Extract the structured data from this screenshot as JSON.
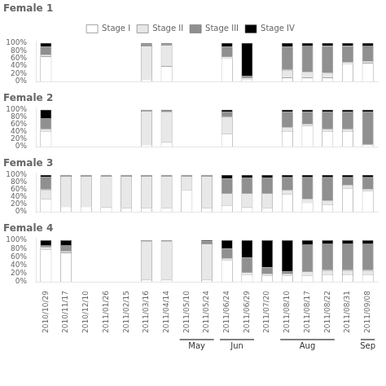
{
  "chart_data": [
    {
      "type": "bar",
      "title": "Female 1",
      "stacked": true,
      "grid": false,
      "legend": "top",
      "tick_labels": "y",
      "categories": [
        "2010/10/29",
        "2010/11/17",
        "2010/12/10",
        "2011/01/26",
        "2011/02/15",
        "2011/03/16",
        "2011/04/14",
        "2011/05/10",
        "2011/05/24",
        "2011/06/24",
        "2011/06/29",
        "2011/07/20",
        "2011/08/10",
        "2011/08/17",
        "2011/08/22",
        "2011/08/31",
        "2011/09/08"
      ],
      "ylim": [
        0,
        105
      ],
      "yticks": [
        {
          "value": 0,
          "label": "0%"
        },
        {
          "value": 20,
          "label": "20%"
        },
        {
          "value": 40,
          "label": "40%"
        },
        {
          "value": 60,
          "label": "60%"
        },
        {
          "value": 80,
          "label": "80%"
        },
        {
          "value": 100,
          "label": "100%"
        }
      ],
      "series": [
        {
          "name": "Stage I",
          "color": "#ffffff",
          "values": [
            65,
            0,
            0,
            0,
            0,
            5,
            40,
            0,
            0,
            60,
            5,
            0,
            10,
            10,
            10,
            45,
            48
          ]
        },
        {
          "name": "Stage II",
          "color": "#e8e8e8",
          "values": [
            5,
            0,
            0,
            0,
            0,
            88,
            55,
            0,
            0,
            5,
            5,
            0,
            20,
            15,
            12,
            5,
            5
          ]
        },
        {
          "name": "Stage III",
          "color": "#909090",
          "values": [
            20,
            0,
            0,
            0,
            0,
            5,
            3,
            0,
            0,
            25,
            5,
            0,
            60,
            68,
            70,
            42,
            40
          ]
        },
        {
          "name": "Stage IV",
          "color": "#000000",
          "values": [
            10,
            0,
            0,
            0,
            0,
            2,
            2,
            0,
            0,
            10,
            85,
            0,
            10,
            7,
            8,
            8,
            7
          ]
        }
      ]
    },
    {
      "type": "bar",
      "title": "Female 2",
      "stacked": true,
      "grid": false,
      "tick_labels": "y",
      "categories": [
        "2010/10/29",
        "2010/11/17",
        "2010/12/10",
        "2011/01/26",
        "2011/02/15",
        "2011/03/16",
        "2011/04/14",
        "2011/05/10",
        "2011/05/24",
        "2011/06/24",
        "2011/06/29",
        "2011/07/20",
        "2011/08/10",
        "2011/08/17",
        "2011/08/22",
        "2011/08/31",
        "2011/09/08"
      ],
      "ylim": [
        0,
        105
      ],
      "yticks": [
        {
          "value": 0,
          "label": "0%"
        },
        {
          "value": 20,
          "label": "20%"
        },
        {
          "value": 40,
          "label": "40%"
        },
        {
          "value": 60,
          "label": "60%"
        },
        {
          "value": 80,
          "label": "80%"
        },
        {
          "value": 100,
          "label": "100%"
        }
      ],
      "series": [
        {
          "name": "Stage I",
          "color": "#ffffff",
          "values": [
            42,
            0,
            0,
            0,
            0,
            5,
            12,
            0,
            0,
            35,
            0,
            0,
            42,
            57,
            42,
            42,
            5
          ]
        },
        {
          "name": "Stage II",
          "color": "#e8e8e8",
          "values": [
            5,
            0,
            0,
            0,
            0,
            92,
            82,
            0,
            0,
            45,
            0,
            0,
            10,
            5,
            5,
            5,
            0
          ]
        },
        {
          "name": "Stage III",
          "color": "#909090",
          "values": [
            30,
            0,
            0,
            0,
            0,
            3,
            5,
            0,
            0,
            15,
            0,
            0,
            42,
            32,
            48,
            48,
            90
          ]
        },
        {
          "name": "Stage IV",
          "color": "#000000",
          "values": [
            23,
            0,
            0,
            0,
            0,
            0,
            1,
            0,
            0,
            5,
            0,
            0,
            6,
            6,
            5,
            5,
            5
          ]
        }
      ]
    },
    {
      "type": "bar",
      "title": "Female 3",
      "stacked": true,
      "grid": false,
      "tick_labels": "y",
      "categories": [
        "2010/10/29",
        "2010/11/17",
        "2010/12/10",
        "2011/01/26",
        "2011/02/15",
        "2011/03/16",
        "2011/04/14",
        "2011/05/10",
        "2011/05/24",
        "2011/06/24",
        "2011/06/29",
        "2011/07/20",
        "2011/08/10",
        "2011/08/17",
        "2011/08/22",
        "2011/08/31",
        "2011/09/08"
      ],
      "ylim": [
        0,
        105
      ],
      "yticks": [
        {
          "value": 0,
          "label": "0%"
        },
        {
          "value": 20,
          "label": "20%"
        },
        {
          "value": 40,
          "label": "40%"
        },
        {
          "value": 60,
          "label": "60%"
        },
        {
          "value": 80,
          "label": "80%"
        },
        {
          "value": 100,
          "label": "100%"
        }
      ],
      "series": [
        {
          "name": "Stage I",
          "color": "#ffffff",
          "values": [
            35,
            14,
            14,
            12,
            10,
            10,
            10,
            60,
            10,
            18,
            12,
            10,
            48,
            25,
            20,
            63,
            57
          ]
        },
        {
          "name": "Stage II",
          "color": "#e8e8e8",
          "values": [
            25,
            83,
            83,
            85,
            87,
            87,
            87,
            37,
            87,
            32,
            38,
            40,
            10,
            10,
            10,
            10,
            5
          ]
        },
        {
          "name": "Stage III",
          "color": "#909090",
          "values": [
            35,
            3,
            3,
            3,
            3,
            3,
            3,
            3,
            3,
            40,
            42,
            42,
            35,
            58,
            63,
            20,
            31
          ]
        },
        {
          "name": "Stage IV",
          "color": "#000000",
          "values": [
            5,
            0,
            0,
            0,
            0,
            0,
            0,
            0,
            0,
            10,
            8,
            8,
            7,
            7,
            7,
            7,
            7
          ]
        }
      ]
    },
    {
      "type": "bar",
      "title": "Female 4",
      "stacked": true,
      "grid": false,
      "categories": [
        "2010/10/29",
        "2010/11/17",
        "2010/12/10",
        "2011/01/26",
        "2011/02/15",
        "2011/03/16",
        "2011/04/14",
        "2011/05/10",
        "2011/05/24",
        "2011/06/24",
        "2011/06/29",
        "2011/07/20",
        "2011/08/10",
        "2011/08/17",
        "2011/08/22",
        "2011/08/31",
        "2011/09/08"
      ],
      "ylim": [
        0,
        105
      ],
      "yticks": [
        {
          "value": 0,
          "label": "0%"
        },
        {
          "value": 20,
          "label": "20%"
        },
        {
          "value": 40,
          "label": "40%"
        },
        {
          "value": 60,
          "label": "60%"
        },
        {
          "value": 80,
          "label": "80%"
        },
        {
          "value": 100,
          "label": "100%"
        }
      ],
      "series": [
        {
          "name": "Stage I",
          "color": "#ffffff",
          "values": [
            78,
            70,
            0,
            0,
            0,
            5,
            5,
            0,
            5,
            52,
            18,
            15,
            15,
            15,
            18,
            18,
            18
          ]
        },
        {
          "name": "Stage II",
          "color": "#e8e8e8",
          "values": [
            5,
            3,
            0,
            0,
            0,
            92,
            92,
            0,
            87,
            5,
            5,
            5,
            5,
            10,
            10,
            10,
            10
          ]
        },
        {
          "name": "Stage III",
          "color": "#909090",
          "values": [
            5,
            15,
            0,
            0,
            0,
            3,
            3,
            0,
            5,
            23,
            35,
            15,
            5,
            65,
            64,
            64,
            64
          ]
        },
        {
          "name": "Stage IV",
          "color": "#000000",
          "values": [
            12,
            12,
            0,
            0,
            0,
            0,
            0,
            0,
            3,
            20,
            42,
            65,
            75,
            10,
            8,
            8,
            8
          ]
        }
      ],
      "annotations": [
        {
          "text": "May",
          "categories": [
            "2011/05/10",
            "2011/05/24"
          ]
        },
        {
          "text": "Jun",
          "categories": [
            "2011/06/24",
            "2011/06/29"
          ]
        },
        {
          "text": "Aug",
          "categories": [
            "2011/08/10",
            "2011/08/17",
            "2011/08/22"
          ]
        },
        {
          "text": "Sep",
          "categories": [
            "2011/09/08"
          ]
        }
      ]
    }
  ]
}
